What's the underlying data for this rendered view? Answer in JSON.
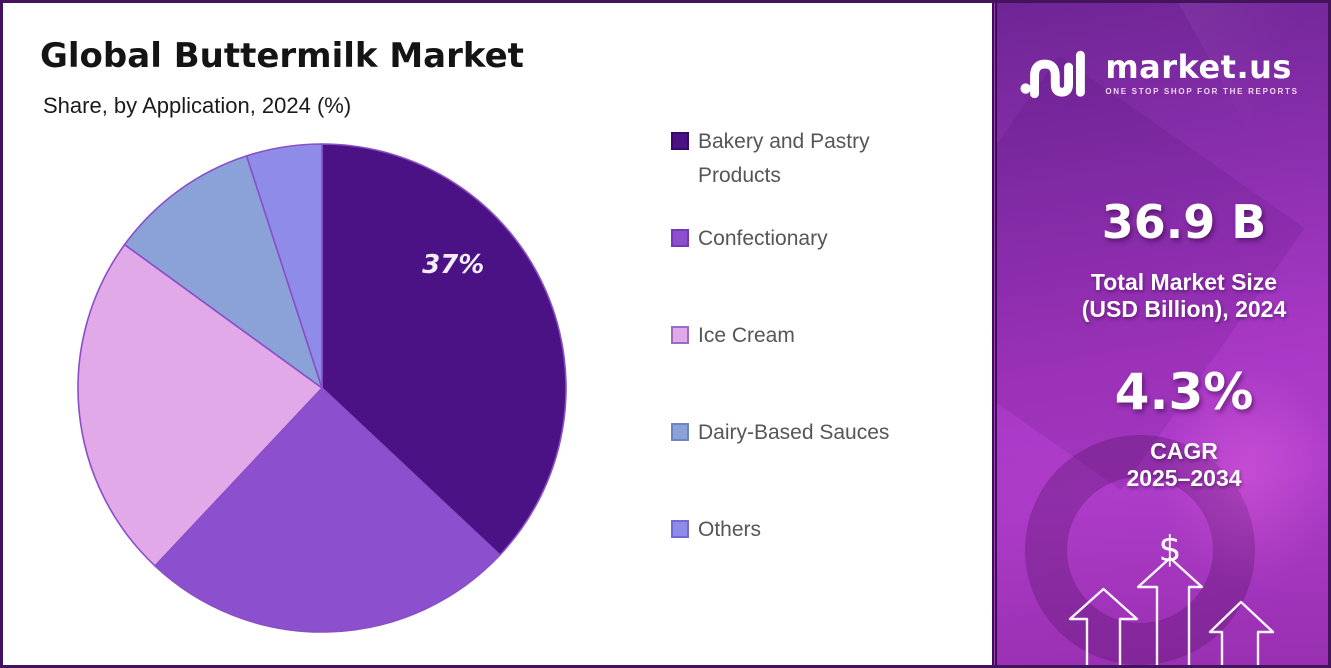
{
  "header": {
    "title": "Global Buttermilk Market",
    "subtitle": "Share, by Application, 2024 (%)"
  },
  "chart_data": {
    "type": "pie",
    "title": "Global Buttermilk Market",
    "subtitle": "Share, by Application, 2024 (%)",
    "unit": "%",
    "start_angle_deg": 0,
    "direction": "clockwise",
    "legend_position": "right",
    "slices": [
      {
        "label": "Bakery and Pastry Products",
        "value": 37,
        "color": "#4A1284",
        "border": "#38096B",
        "data_label": "37%"
      },
      {
        "label": "Confectionary",
        "value": 25,
        "color": "#8C50CE",
        "border": "#7438B8",
        "data_label": ""
      },
      {
        "label": "Ice Cream",
        "value": 23,
        "color": "#E2A9E9",
        "border": "#9C6BC8",
        "data_label": ""
      },
      {
        "label": "Dairy-Based Sauces",
        "value": 10,
        "color": "#8BA2D8",
        "border": "#7082C4",
        "data_label": ""
      },
      {
        "label": "Others",
        "value": 5,
        "color": "#8F8BE8",
        "border": "#6F6AD4",
        "data_label": ""
      }
    ],
    "slice_stroke_color": "#8A4FC8"
  },
  "panel": {
    "brand": "market.us",
    "tagline": "ONE STOP SHOP FOR THE REPORTS",
    "market_size": {
      "value": "36.9 B",
      "label_line1": "Total Market Size",
      "label_line2": "(USD Billion), 2024"
    },
    "cagr": {
      "value": "4.3%",
      "label_line1": "CAGR",
      "label_line2": "2025–2034"
    },
    "dollar_glyph": "$",
    "colors": {
      "gradient_top": "#6E2594",
      "gradient_bottom": "#B13ECD",
      "edge_line": "#3A1150"
    }
  },
  "frame": {
    "border_color": "#44135E"
  }
}
